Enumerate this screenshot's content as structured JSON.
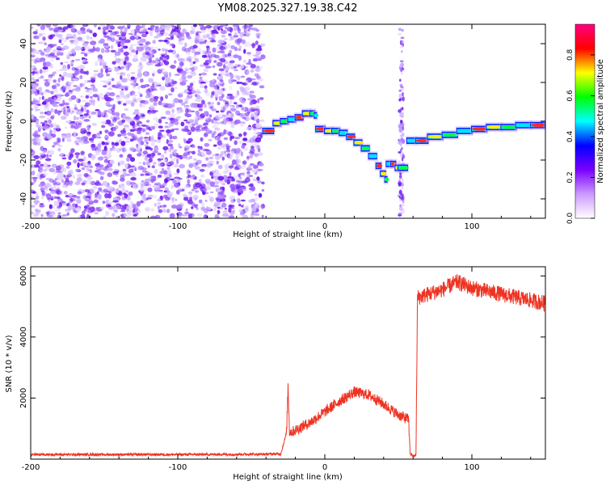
{
  "title": "YM08.2025.327.19.38.C42",
  "colors": {
    "snr_line": "#ee3322",
    "axis": "#000000",
    "noise": "#7a2cf0"
  },
  "chart_data": [
    {
      "type": "heatmap",
      "xlabel": "Height of straight line (km)",
      "ylabel": "Frequency (Hz)",
      "xlim": [
        -200,
        150
      ],
      "ylim": [
        -50,
        50
      ],
      "xticks": [
        -200,
        -100,
        0,
        100
      ],
      "yticks": [
        -40,
        -20,
        0,
        20,
        40
      ],
      "colorbar": {
        "label": "Normalized spectral amplitude",
        "ticks": [
          0.0,
          0.2,
          0.4,
          0.6,
          0.8
        ],
        "tick_labels": [
          "0.0",
          "0.2",
          "0.4",
          "0.6",
          "0.8"
        ],
        "range": [
          0,
          0.95
        ],
        "colormap": [
          "#ffffff",
          "#cc99ff",
          "#7a00ff",
          "#0000ff",
          "#00ffff",
          "#00ff00",
          "#ffff00",
          "#ff0000",
          "#ff0080"
        ]
      },
      "noise_region": {
        "x_range": [
          -200,
          -42
        ],
        "note": ""
      },
      "gap_spike": {
        "x": 52,
        "y_range": [
          -50,
          48
        ]
      },
      "ridge": [
        {
          "x": -42,
          "y": -5
        },
        {
          "x": -35,
          "y": -1
        },
        {
          "x": -30,
          "y": 0
        },
        {
          "x": -25,
          "y": 1
        },
        {
          "x": -20,
          "y": 2
        },
        {
          "x": -15,
          "y": 4
        },
        {
          "x": -10,
          "y": 4
        },
        {
          "x": -7,
          "y": 3
        },
        {
          "x": -6,
          "y": -4
        },
        {
          "x": 0,
          "y": -5
        },
        {
          "x": 5,
          "y": -5
        },
        {
          "x": 10,
          "y": -6
        },
        {
          "x": 15,
          "y": -8
        },
        {
          "x": 20,
          "y": -11
        },
        {
          "x": 25,
          "y": -14
        },
        {
          "x": 30,
          "y": -18
        },
        {
          "x": 35,
          "y": -23
        },
        {
          "x": 38,
          "y": -27
        },
        {
          "x": 41,
          "y": -30
        },
        {
          "x": 42,
          "y": -22
        },
        {
          "x": 45,
          "y": -22
        },
        {
          "x": 48,
          "y": -24
        },
        {
          "x": 50,
          "y": -24
        },
        {
          "x": 56,
          "y": -10
        },
        {
          "x": 62,
          "y": -10
        },
        {
          "x": 70,
          "y": -8
        },
        {
          "x": 80,
          "y": -7
        },
        {
          "x": 90,
          "y": -5
        },
        {
          "x": 100,
          "y": -4
        },
        {
          "x": 110,
          "y": -3
        },
        {
          "x": 120,
          "y": -3
        },
        {
          "x": 130,
          "y": -2
        },
        {
          "x": 140,
          "y": -2
        },
        {
          "x": 150,
          "y": -2
        }
      ]
    },
    {
      "type": "line",
      "xlabel": "Height of straight line (km)",
      "ylabel": "SNR (10 * v/v)",
      "xlim": [
        -200,
        150
      ],
      "ylim": [
        0,
        6300
      ],
      "xticks": [
        -200,
        -100,
        0,
        100
      ],
      "yticks": [
        2000,
        4000,
        6000
      ],
      "series": [
        {
          "x": [
            -200,
            -150,
            -100,
            -50,
            -30,
            -28,
            -26,
            -25,
            -24,
            -22,
            -20,
            -10,
            0,
            10,
            20,
            30,
            40,
            50,
            57,
            58,
            60,
            62,
            63,
            64,
            70,
            80,
            90,
            100,
            110,
            120,
            130,
            140,
            150
          ],
          "y": [
            150,
            150,
            150,
            160,
            170,
            500,
            900,
            2400,
            900,
            900,
            950,
            1200,
            1550,
            1900,
            2200,
            2100,
            1800,
            1450,
            1300,
            200,
            100,
            130,
            5300,
            5300,
            5400,
            5550,
            5800,
            5600,
            5500,
            5400,
            5300,
            5200,
            5100
          ]
        }
      ]
    }
  ]
}
